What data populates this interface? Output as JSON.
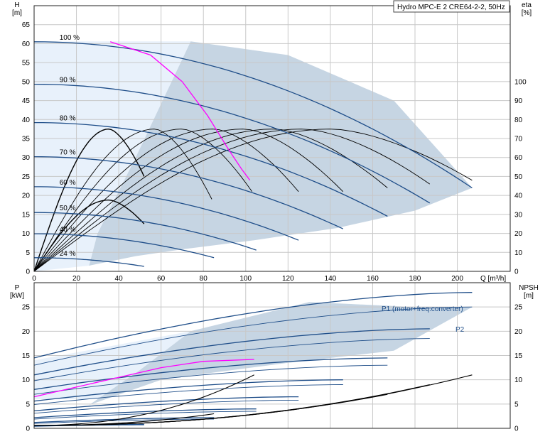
{
  "title": "Hydro MPC-E 2 CRE64-2-2, 50Hz",
  "colors": {
    "background": "#ffffff",
    "region_light": "#e8f1fb",
    "region_dark": "#c6d5e3",
    "speed_curve": "#1f4e89",
    "max_flow_curve": "#ff00ff",
    "efficiency_curve": "#000000",
    "grid": "#c8c8c8"
  },
  "chart_data": [
    {
      "type": "line",
      "panel": "head",
      "xlabel": "Q [m³/h]",
      "ylabel": "H",
      "ylabel_unit": "[m]",
      "y2label": "eta",
      "y2label_unit": "[%]",
      "xlim": [
        0,
        225
      ],
      "ylim": [
        0,
        70
      ],
      "y2lim": [
        0,
        140
      ],
      "x_ticks": [
        0,
        20,
        40,
        60,
        80,
        100,
        120,
        140,
        160,
        180,
        200
      ],
      "y_ticks": [
        0,
        5,
        10,
        15,
        20,
        25,
        30,
        35,
        40,
        45,
        50,
        55,
        60,
        65
      ],
      "y2_ticks": [
        0,
        10,
        20,
        30,
        40,
        50,
        60,
        70,
        80,
        90,
        100
      ],
      "grid": true,
      "speed_curves": [
        {
          "label": "100 %",
          "shutoff_head": 60.5,
          "qmax": 207,
          "end_head": 22,
          "label_x": 12
        },
        {
          "label": "90 %",
          "shutoff_head": 49.3,
          "qmax": 187,
          "end_head": 18,
          "label_x": 12
        },
        {
          "label": "80 %",
          "shutoff_head": 39.2,
          "qmax": 167,
          "end_head": 14.5,
          "label_x": 12
        },
        {
          "label": "70 %",
          "shutoff_head": 30.2,
          "qmax": 146,
          "end_head": 11.2,
          "label_x": 12
        },
        {
          "label": "60 %",
          "shutoff_head": 22.3,
          "qmax": 125,
          "end_head": 8.2,
          "label_x": 12
        },
        {
          "label": "50 %",
          "shutoff_head": 15.5,
          "qmax": 105,
          "end_head": 5.6,
          "label_x": 12
        },
        {
          "label": "40 %",
          "shutoff_head": 9.9,
          "qmax": 85,
          "end_head": 3.6,
          "label_x": 12
        },
        {
          "label": "24 %",
          "shutoff_head": 3.6,
          "qmax": 52,
          "end_head": 1.3,
          "label_x": 12
        }
      ],
      "operating_area": [
        [
          26,
          1.5
        ],
        [
          48,
          4
        ],
        [
          70,
          5.8
        ],
        [
          104,
          8.2
        ],
        [
          143,
          11.4
        ],
        [
          180,
          16
        ],
        [
          207,
          22
        ],
        [
          170,
          45
        ],
        [
          120,
          57
        ],
        [
          74,
          60.6
        ],
        [
          48,
          30
        ],
        [
          30,
          10
        ]
      ],
      "low_flow_area": [
        [
          0,
          0
        ],
        [
          0,
          60.6
        ],
        [
          74,
          60.6
        ],
        [
          48,
          30
        ],
        [
          30,
          10
        ],
        [
          26,
          1.5
        ]
      ],
      "max_flow_curve": [
        [
          36,
          60.5
        ],
        [
          55,
          57
        ],
        [
          70,
          50
        ],
        [
          82,
          41
        ],
        [
          92,
          32
        ],
        [
          98,
          27
        ],
        [
          102,
          24
        ]
      ],
      "efficiency_curves": [
        {
          "q": 52,
          "peak": 37.5,
          "width": 62,
          "end": 25
        },
        {
          "q": 52,
          "peak": 18.8,
          "width": 62,
          "end": 12.5
        },
        {
          "q": 84,
          "peak": 37.5,
          "width": 100,
          "end": 19
        },
        {
          "q": 103,
          "peak": 37.5,
          "width": 124,
          "end": 21
        },
        {
          "q": 125,
          "peak": 37.5,
          "width": 150,
          "end": 21
        },
        {
          "q": 146,
          "peak": 37.5,
          "width": 176,
          "end": 21
        },
        {
          "q": 167,
          "peak": 37.5,
          "width": 200,
          "end": 22
        },
        {
          "q": 187,
          "peak": 37.5,
          "width": 222,
          "end": 23
        },
        {
          "q": 207,
          "peak": 37.5,
          "width": 248,
          "end": 24
        }
      ]
    },
    {
      "type": "line",
      "panel": "power",
      "xlabel": "",
      "ylabel": "P",
      "ylabel_unit": "[kW]",
      "y2label": "NPSH",
      "y2label_unit": "[m]",
      "xlim": [
        0,
        225
      ],
      "ylim": [
        0,
        30
      ],
      "y2lim": [
        0,
        30
      ],
      "y_ticks": [
        0,
        5,
        10,
        15,
        20,
        25
      ],
      "y2_ticks": [
        0,
        5,
        10,
        15,
        20,
        25
      ],
      "grid": true,
      "series_labels": [
        "P1 (motor+freq.converter)",
        "P2"
      ],
      "p1_curves": [
        {
          "start": 14.5,
          "end": 28,
          "qmax": 207
        },
        {
          "start": 11,
          "end": 20.5,
          "qmax": 187
        },
        {
          "start": 8,
          "end": 14.5,
          "qmax": 167
        },
        {
          "start": 5.6,
          "end": 10,
          "qmax": 146
        },
        {
          "start": 3.6,
          "end": 6.5,
          "qmax": 125
        },
        {
          "start": 2.2,
          "end": 4,
          "qmax": 105
        },
        {
          "start": 1.2,
          "end": 2.2,
          "qmax": 85
        },
        {
          "start": 0.5,
          "end": 0.8,
          "qmax": 52
        }
      ],
      "p2_curves": [
        {
          "start": 13,
          "end": 25,
          "qmax": 207
        },
        {
          "start": 9.8,
          "end": 18.5,
          "qmax": 187
        },
        {
          "start": 7,
          "end": 13,
          "qmax": 167
        },
        {
          "start": 4.9,
          "end": 9,
          "qmax": 146
        },
        {
          "start": 3.1,
          "end": 5.8,
          "qmax": 125
        },
        {
          "start": 1.9,
          "end": 3.5,
          "qmax": 105
        },
        {
          "start": 1,
          "end": 1.9,
          "qmax": 85
        },
        {
          "start": 0.4,
          "end": 0.7,
          "qmax": 52
        }
      ],
      "max_flow_power": [
        [
          0,
          6.5
        ],
        [
          20,
          8.5
        ],
        [
          40,
          10.5
        ],
        [
          60,
          12.5
        ],
        [
          80,
          13.8
        ],
        [
          104,
          14.2
        ]
      ],
      "npsh_curves": [
        {
          "qmax": 207,
          "end": 11
        },
        {
          "qmax": 187,
          "end": 9
        },
        {
          "qmax": 167,
          "end": 7
        },
        {
          "qmax": 146,
          "end": 5.4
        },
        {
          "qmax": 125,
          "end": 4
        },
        {
          "qmax": 104,
          "end": 11
        },
        {
          "qmax": 85,
          "end": 3
        }
      ],
      "area": [
        [
          26,
          4.8
        ],
        [
          60,
          10
        ],
        [
          85,
          11.5
        ],
        [
          120,
          13.5
        ],
        [
          170,
          16
        ],
        [
          207,
          25
        ],
        [
          180,
          25
        ],
        [
          130,
          26
        ],
        [
          74,
          20
        ],
        [
          50,
          12
        ],
        [
          30,
          6
        ]
      ],
      "low_area": [
        [
          0,
          6
        ],
        [
          0,
          14
        ],
        [
          74,
          20
        ],
        [
          50,
          12
        ],
        [
          30,
          6
        ]
      ]
    }
  ]
}
